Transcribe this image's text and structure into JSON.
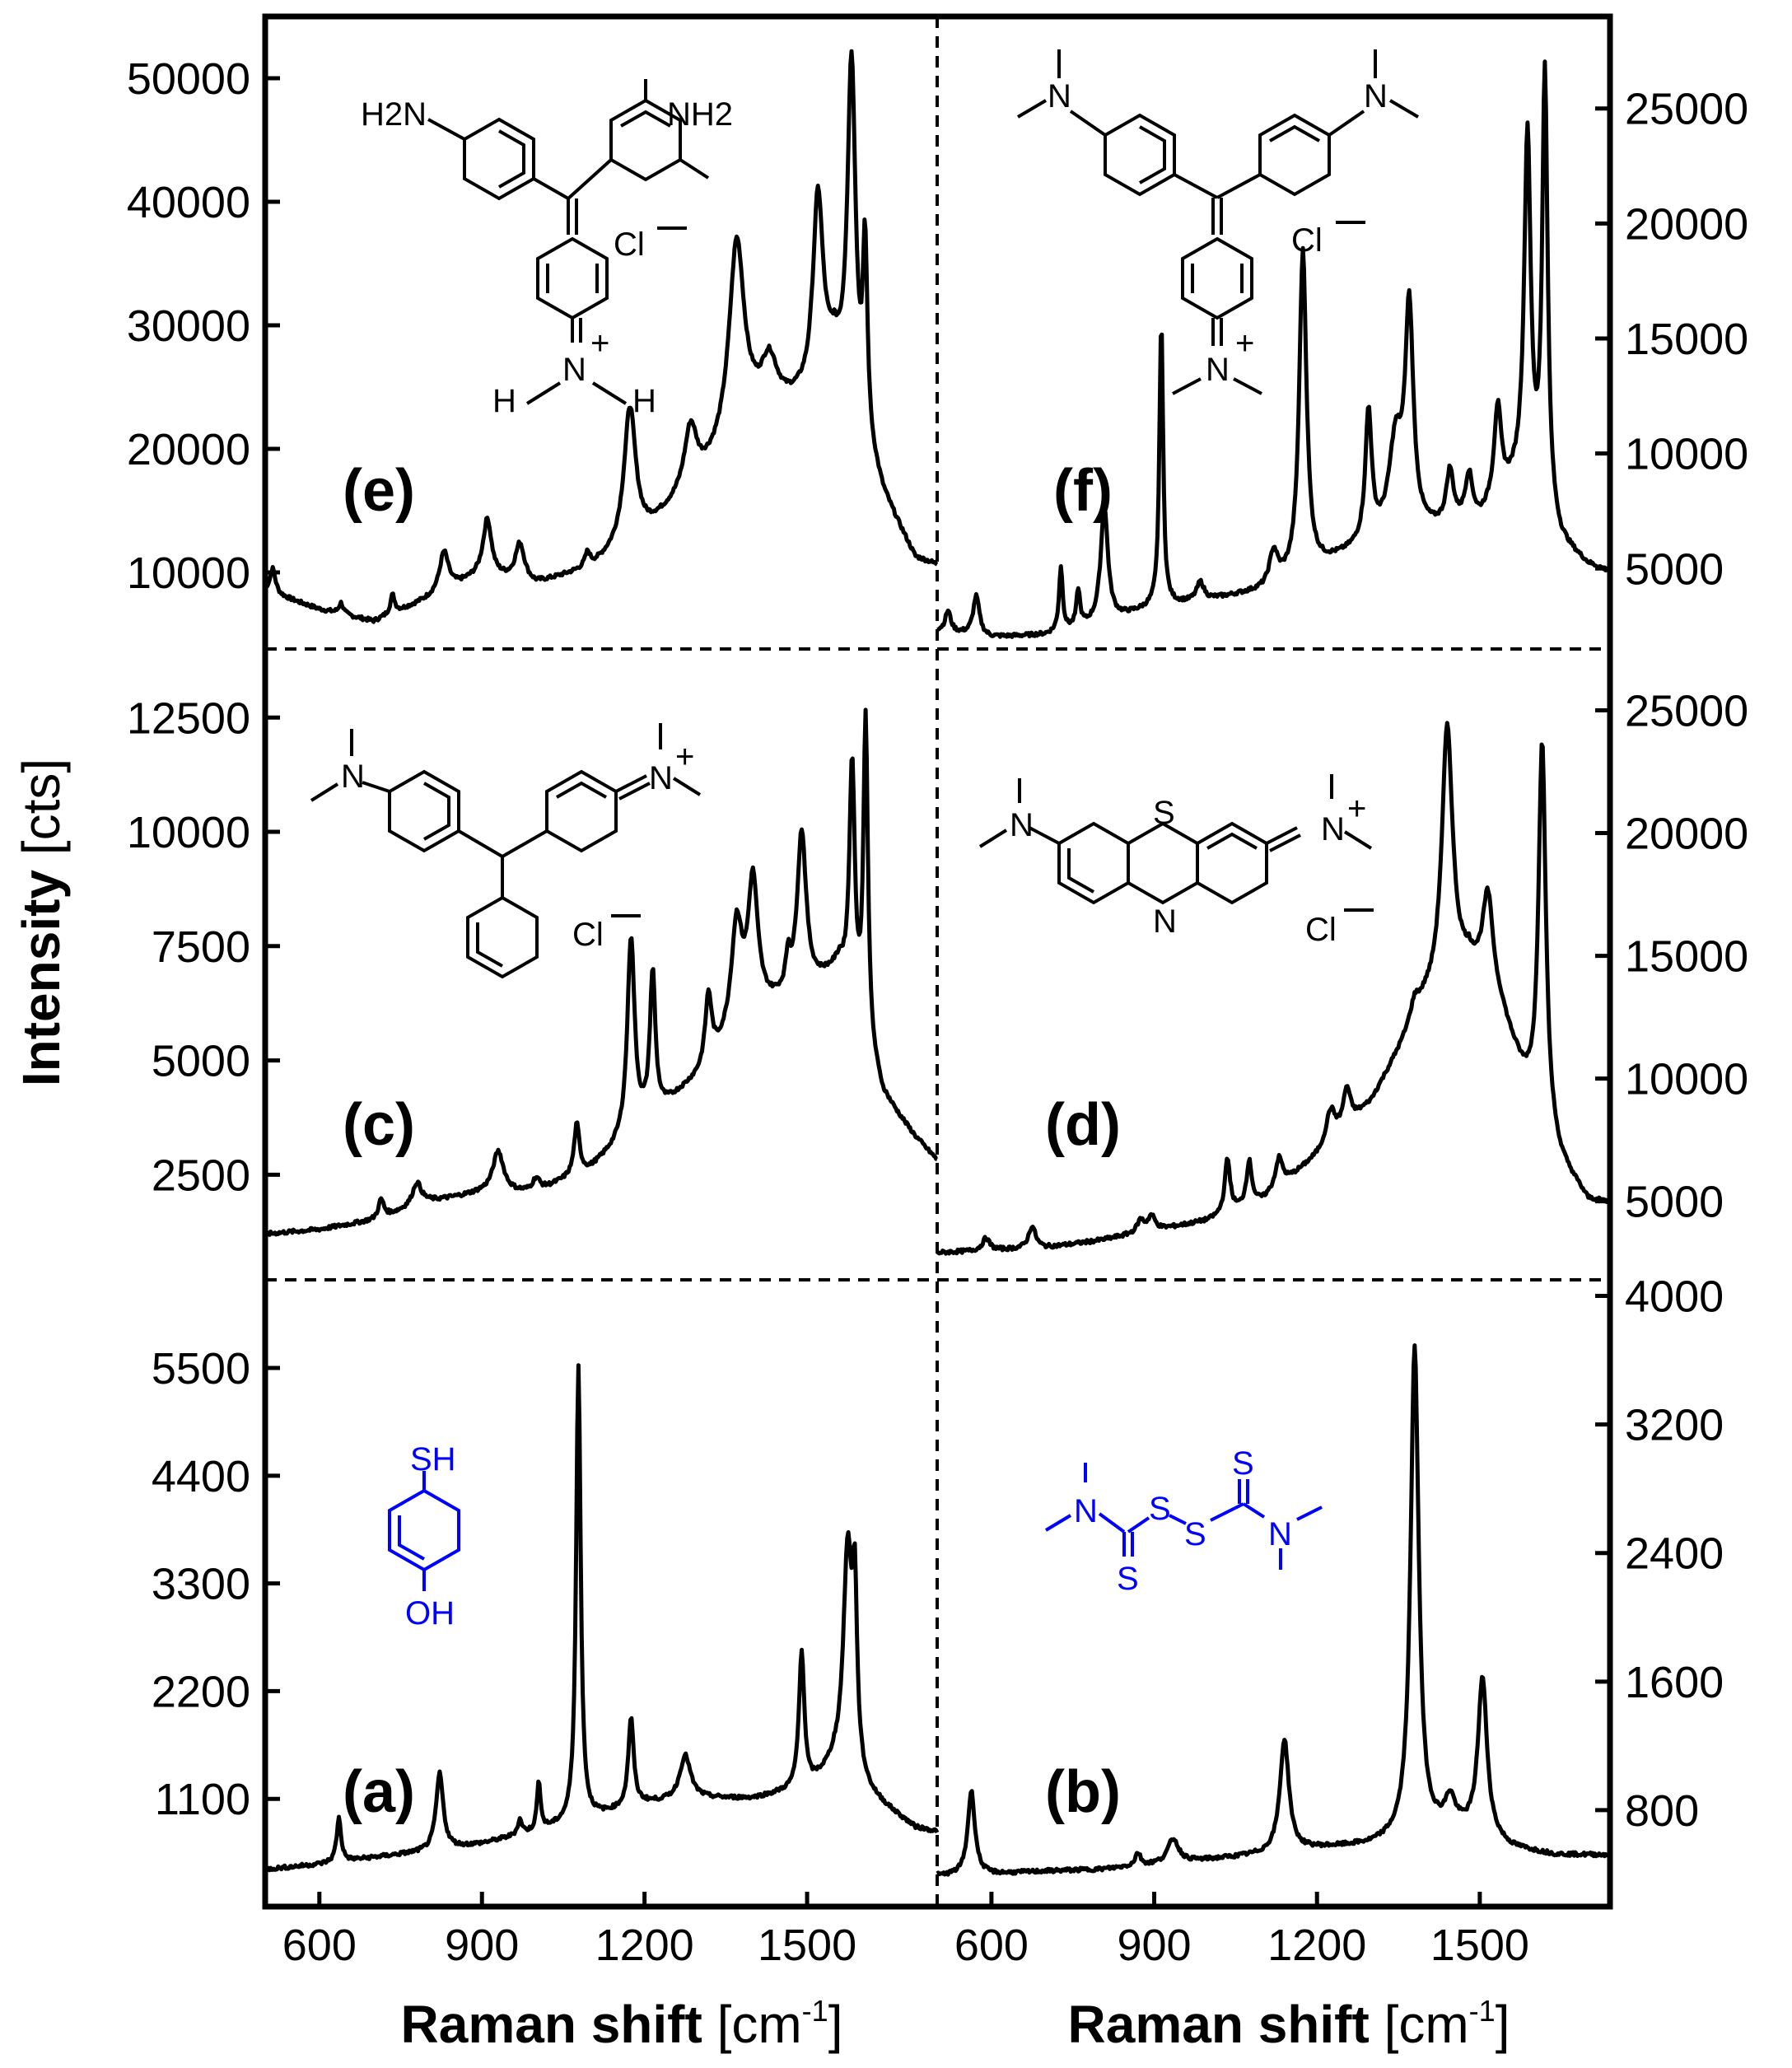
{
  "chart_data": {
    "type": "line",
    "ylabel_text": "Intensity",
    "ylabel_unit": "[cts]",
    "xlabel_text": "Raman shift",
    "xlabel_unit": "[cm",
    "xlabel_sup": "-1",
    "xlabel_close": "]",
    "xlim": [
      500,
      1740
    ],
    "grid": false,
    "legend": "none",
    "colors": {
      "line": "#000000",
      "molecule_highlight": "#0000ff"
    },
    "x_ticks": [
      "600",
      "900",
      "1200",
      "1500"
    ],
    "panels": [
      {
        "id": "e",
        "label": "(e)",
        "row": 0,
        "col": 0,
        "y_axis_side": "left",
        "y_ticks": [
          "10000",
          "20000",
          "30000",
          "40000",
          "50000"
        ],
        "y_tick_values": [
          10000,
          20000,
          30000,
          40000,
          50000
        ],
        "ylim": [
          3800,
          55000
        ],
        "molecule": "structure-e",
        "molecule_labels": [
          "H2N",
          "NH2",
          "Cl",
          "N",
          "H",
          "H",
          "+"
        ],
        "baseline": [
          [
            500,
            8500
          ],
          [
            600,
            7000
          ],
          [
            700,
            6000
          ],
          [
            800,
            7800
          ],
          [
            900,
            9800
          ],
          [
            1000,
            9000
          ],
          [
            1100,
            10200
          ],
          [
            1200,
            13000
          ],
          [
            1300,
            17000
          ],
          [
            1400,
            22000
          ],
          [
            1500,
            24000
          ],
          [
            1550,
            27000
          ],
          [
            1640,
            16000
          ],
          [
            1700,
            11000
          ],
          [
            1740,
            10500
          ]
        ],
        "peaks": [
          [
            514,
            2000,
            6
          ],
          [
            640,
            900,
            5
          ],
          [
            735,
            1500,
            5
          ],
          [
            830,
            3200,
            10
          ],
          [
            910,
            4500,
            9
          ],
          [
            970,
            3000,
            10
          ],
          [
            1095,
            1200,
            6
          ],
          [
            1173,
            11000,
            13
          ],
          [
            1285,
            5000,
            14
          ],
          [
            1370,
            16000,
            17
          ],
          [
            1430,
            4000,
            18
          ],
          [
            1520,
            15000,
            11
          ],
          [
            1582,
            28000,
            9
          ],
          [
            1607,
            15000,
            5
          ]
        ]
      },
      {
        "id": "f",
        "label": "(f)",
        "row": 0,
        "col": 1,
        "y_axis_side": "right",
        "y_ticks": [
          "5000",
          "10000",
          "15000",
          "20000",
          "25000"
        ],
        "y_tick_values": [
          5000,
          10000,
          15000,
          20000,
          25000
        ],
        "ylim": [
          1500,
          29000
        ],
        "molecule": "structure-f",
        "molecule_labels": [
          "N",
          "N",
          "Cl",
          "N",
          "+"
        ],
        "baseline": [
          [
            500,
            2300
          ],
          [
            600,
            2000
          ],
          [
            700,
            2100
          ],
          [
            800,
            2600
          ],
          [
            900,
            3300
          ],
          [
            1000,
            3600
          ],
          [
            1100,
            4000
          ],
          [
            1200,
            5000
          ],
          [
            1300,
            6000
          ],
          [
            1400,
            6500
          ],
          [
            1500,
            7000
          ],
          [
            1580,
            9000
          ],
          [
            1650,
            6000
          ],
          [
            1700,
            5100
          ],
          [
            1740,
            4800
          ]
        ],
        "peaks": [
          [
            520,
            900,
            6
          ],
          [
            572,
            1700,
            7
          ],
          [
            728,
            2800,
            4
          ],
          [
            760,
            1600,
            4
          ],
          [
            808,
            5000,
            8
          ],
          [
            913,
            12500,
            4
          ],
          [
            985,
            800,
            8
          ],
          [
            1120,
            1400,
            9
          ],
          [
            1174,
            14000,
            8
          ],
          [
            1295,
            5600,
            7
          ],
          [
            1345,
            4000,
            15
          ],
          [
            1370,
            9500,
            9
          ],
          [
            1445,
            2300,
            8
          ],
          [
            1480,
            2000,
            8
          ],
          [
            1533,
            4000,
            8
          ],
          [
            1588,
            15000,
            7
          ],
          [
            1620,
            19000,
            6
          ]
        ]
      },
      {
        "id": "c",
        "label": "(c)",
        "row": 1,
        "col": 0,
        "y_axis_side": "left",
        "y_ticks": [
          "2500",
          "5000",
          "7500",
          "10000",
          "12500"
        ],
        "y_tick_values": [
          2500,
          5000,
          7500,
          10000,
          12500
        ],
        "ylim": [
          200,
          14000
        ],
        "molecule": "structure-c",
        "molecule_labels": [
          "N",
          "N",
          "+",
          "Cl"
        ],
        "baseline": [
          [
            500,
            1200
          ],
          [
            600,
            1300
          ],
          [
            700,
            1500
          ],
          [
            800,
            1900
          ],
          [
            900,
            2100
          ],
          [
            1000,
            2100
          ],
          [
            1100,
            2600
          ],
          [
            1200,
            3600
          ],
          [
            1300,
            4600
          ],
          [
            1400,
            6000
          ],
          [
            1500,
            6500
          ],
          [
            1560,
            7000
          ],
          [
            1640,
            4200
          ],
          [
            1700,
            3300
          ],
          [
            1740,
            2800
          ]
        ],
        "peaks": [
          [
            714,
            400,
            6
          ],
          [
            780,
            500,
            10
          ],
          [
            930,
            900,
            12
          ],
          [
            1000,
            300,
            8
          ],
          [
            1075,
            1100,
            6
          ],
          [
            1175,
            4300,
            8
          ],
          [
            1215,
            3100,
            6
          ],
          [
            1318,
            1500,
            7
          ],
          [
            1370,
            2300,
            12
          ],
          [
            1400,
            2800,
            11
          ],
          [
            1465,
            700,
            5
          ],
          [
            1490,
            3500,
            10
          ],
          [
            1583,
            5200,
            6
          ],
          [
            1608,
            7000,
            5
          ]
        ]
      },
      {
        "id": "d",
        "label": "(d)",
        "row": 1,
        "col": 1,
        "y_axis_side": "right",
        "y_ticks": [
          "5000",
          "10000",
          "15000",
          "20000",
          "25000"
        ],
        "y_tick_values": [
          5000,
          10000,
          15000,
          20000,
          25000
        ],
        "ylim": [
          1800,
          27500
        ],
        "molecule": "structure-d",
        "molecule_labels": [
          "N",
          "N",
          "S",
          "N",
          "+",
          "Cl"
        ],
        "baseline": [
          [
            500,
            2900
          ],
          [
            600,
            3000
          ],
          [
            700,
            3100
          ],
          [
            800,
            3400
          ],
          [
            900,
            3800
          ],
          [
            1000,
            4200
          ],
          [
            1100,
            5000
          ],
          [
            1200,
            6800
          ],
          [
            1300,
            9000
          ],
          [
            1400,
            13000
          ],
          [
            1480,
            14500
          ],
          [
            1540,
            12500
          ],
          [
            1580,
            10000
          ],
          [
            1650,
            6500
          ],
          [
            1700,
            5000
          ],
          [
            1740,
            4900
          ]
        ],
        "peaks": [
          [
            590,
            500,
            8
          ],
          [
            675,
            900,
            8
          ],
          [
            875,
            500,
            8
          ],
          [
            895,
            600,
            8
          ],
          [
            1035,
            2200,
            6
          ],
          [
            1075,
            1800,
            6
          ],
          [
            1130,
            1200,
            8
          ],
          [
            1225,
            1300,
            10
          ],
          [
            1255,
            1500,
            8
          ],
          [
            1380,
            800,
            10
          ],
          [
            1440,
            10500,
            12
          ],
          [
            1515,
            4000,
            12
          ],
          [
            1615,
            15500,
            8
          ]
        ]
      },
      {
        "id": "a",
        "label": "(a)",
        "row": 2,
        "col": 0,
        "y_axis_side": "left",
        "y_ticks": [
          "1100",
          "2200",
          "3300",
          "4400",
          "5500"
        ],
        "y_tick_values": [
          1100,
          2200,
          3300,
          4400,
          5500
        ],
        "ylim": [
          0,
          6400
        ],
        "molecule": "structure-a",
        "molecule_labels": [
          "SH",
          "OH"
        ],
        "baseline": [
          [
            500,
            380
          ],
          [
            600,
            430
          ],
          [
            700,
            500
          ],
          [
            800,
            560
          ],
          [
            900,
            640
          ],
          [
            1000,
            760
          ],
          [
            1100,
            900
          ],
          [
            1200,
            1050
          ],
          [
            1300,
            1100
          ],
          [
            1400,
            1100
          ],
          [
            1500,
            1200
          ],
          [
            1550,
            1400
          ],
          [
            1620,
            1100
          ],
          [
            1700,
            800
          ],
          [
            1740,
            760
          ]
        ],
        "peaks": [
          [
            636,
            450,
            5
          ],
          [
            822,
            780,
            8
          ],
          [
            970,
            150,
            5
          ],
          [
            1005,
            500,
            4
          ],
          [
            1078,
            4650,
            5
          ],
          [
            1175,
            900,
            6
          ],
          [
            1275,
            450,
            12
          ],
          [
            1490,
            1400,
            6
          ],
          [
            1575,
            2300,
            10
          ],
          [
            1588,
            1600,
            5
          ]
        ]
      },
      {
        "id": "b",
        "label": "(b)",
        "row": 2,
        "col": 1,
        "y_axis_side": "right",
        "y_ticks": [
          "800",
          "1600",
          "2400",
          "3200",
          "4000"
        ],
        "y_tick_values": [
          800,
          1600,
          2400,
          3200,
          4000
        ],
        "ylim": [
          200,
          4100
        ],
        "molecule": "structure-b",
        "molecule_labels": [
          "N",
          "S",
          "S",
          "S",
          "S",
          "N"
        ],
        "baseline": [
          [
            500,
            390
          ],
          [
            600,
            400
          ],
          [
            700,
            420
          ],
          [
            800,
            430
          ],
          [
            900,
            460
          ],
          [
            1000,
            490
          ],
          [
            1100,
            520
          ],
          [
            1200,
            560
          ],
          [
            1300,
            580
          ],
          [
            1400,
            650
          ],
          [
            1450,
            700
          ],
          [
            1500,
            640
          ],
          [
            1560,
            560
          ],
          [
            1640,
            520
          ],
          [
            1740,
            520
          ]
        ],
        "peaks": [
          [
            563,
            520,
            8
          ],
          [
            870,
            80,
            6
          ],
          [
            935,
            150,
            12
          ],
          [
            1140,
            700,
            10
          ],
          [
            1380,
            3050,
            9
          ],
          [
            1445,
            150,
            10
          ],
          [
            1505,
            980,
            10
          ]
        ]
      }
    ]
  }
}
